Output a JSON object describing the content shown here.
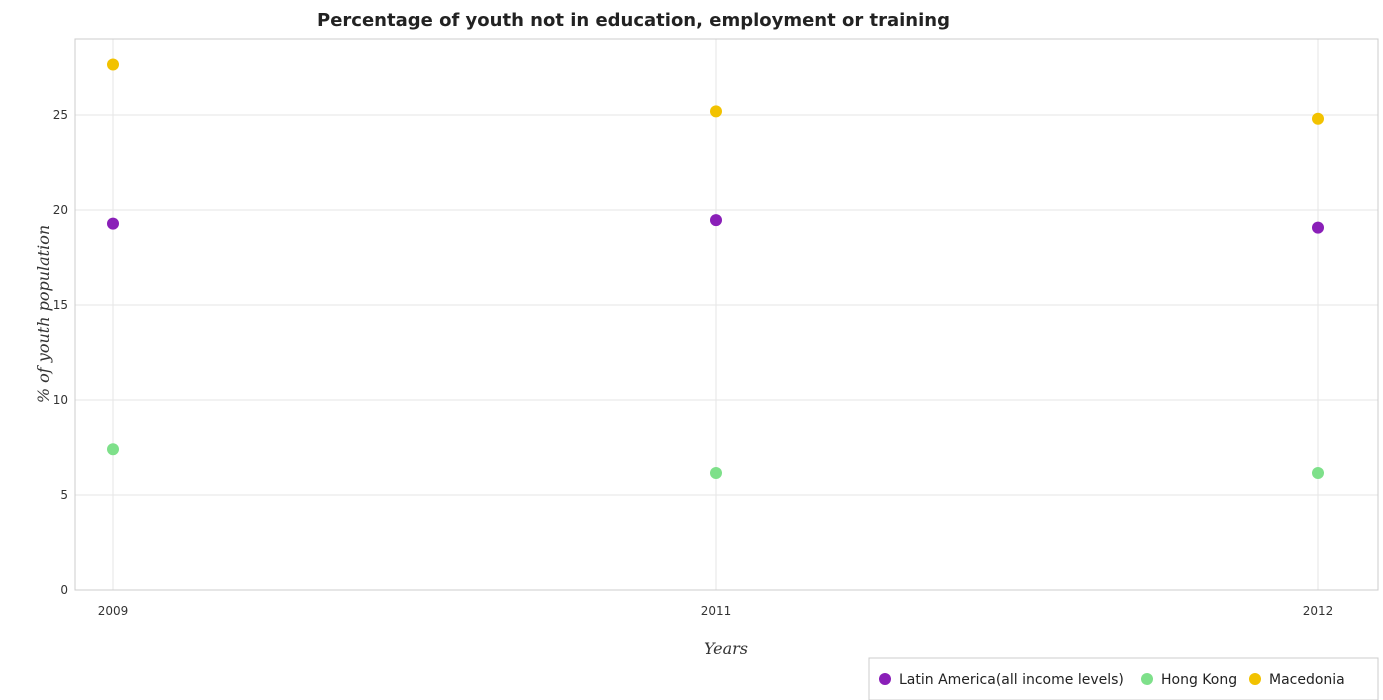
{
  "colors": {
    "latin": "#8a1fb8",
    "hongkong": "#7ee08a",
    "macedonia": "#f2c200"
  },
  "chart_data": {
    "type": "scatter",
    "title": "Percentage of youth not in education, employment or training",
    "xlabel": "Years",
    "ylabel": "% of youth population",
    "categories": [
      "2009",
      "2011",
      "2012"
    ],
    "ylim": [
      0,
      29
    ],
    "yticks": [
      "0",
      "5",
      "10",
      "15",
      "20",
      "25"
    ],
    "grid": true,
    "legend_position": "bottom-right",
    "series": [
      {
        "name": "Latin America(all income levels)",
        "color": "#8a1fb8",
        "values": [
          19.28,
          19.47,
          19.07
        ]
      },
      {
        "name": "Hong Kong",
        "color": "#7ee08a",
        "values": [
          7.41,
          6.16,
          6.16
        ]
      },
      {
        "name": "Macedonia",
        "color": "#f2c200",
        "values": [
          27.66,
          25.19,
          24.8
        ]
      }
    ]
  }
}
